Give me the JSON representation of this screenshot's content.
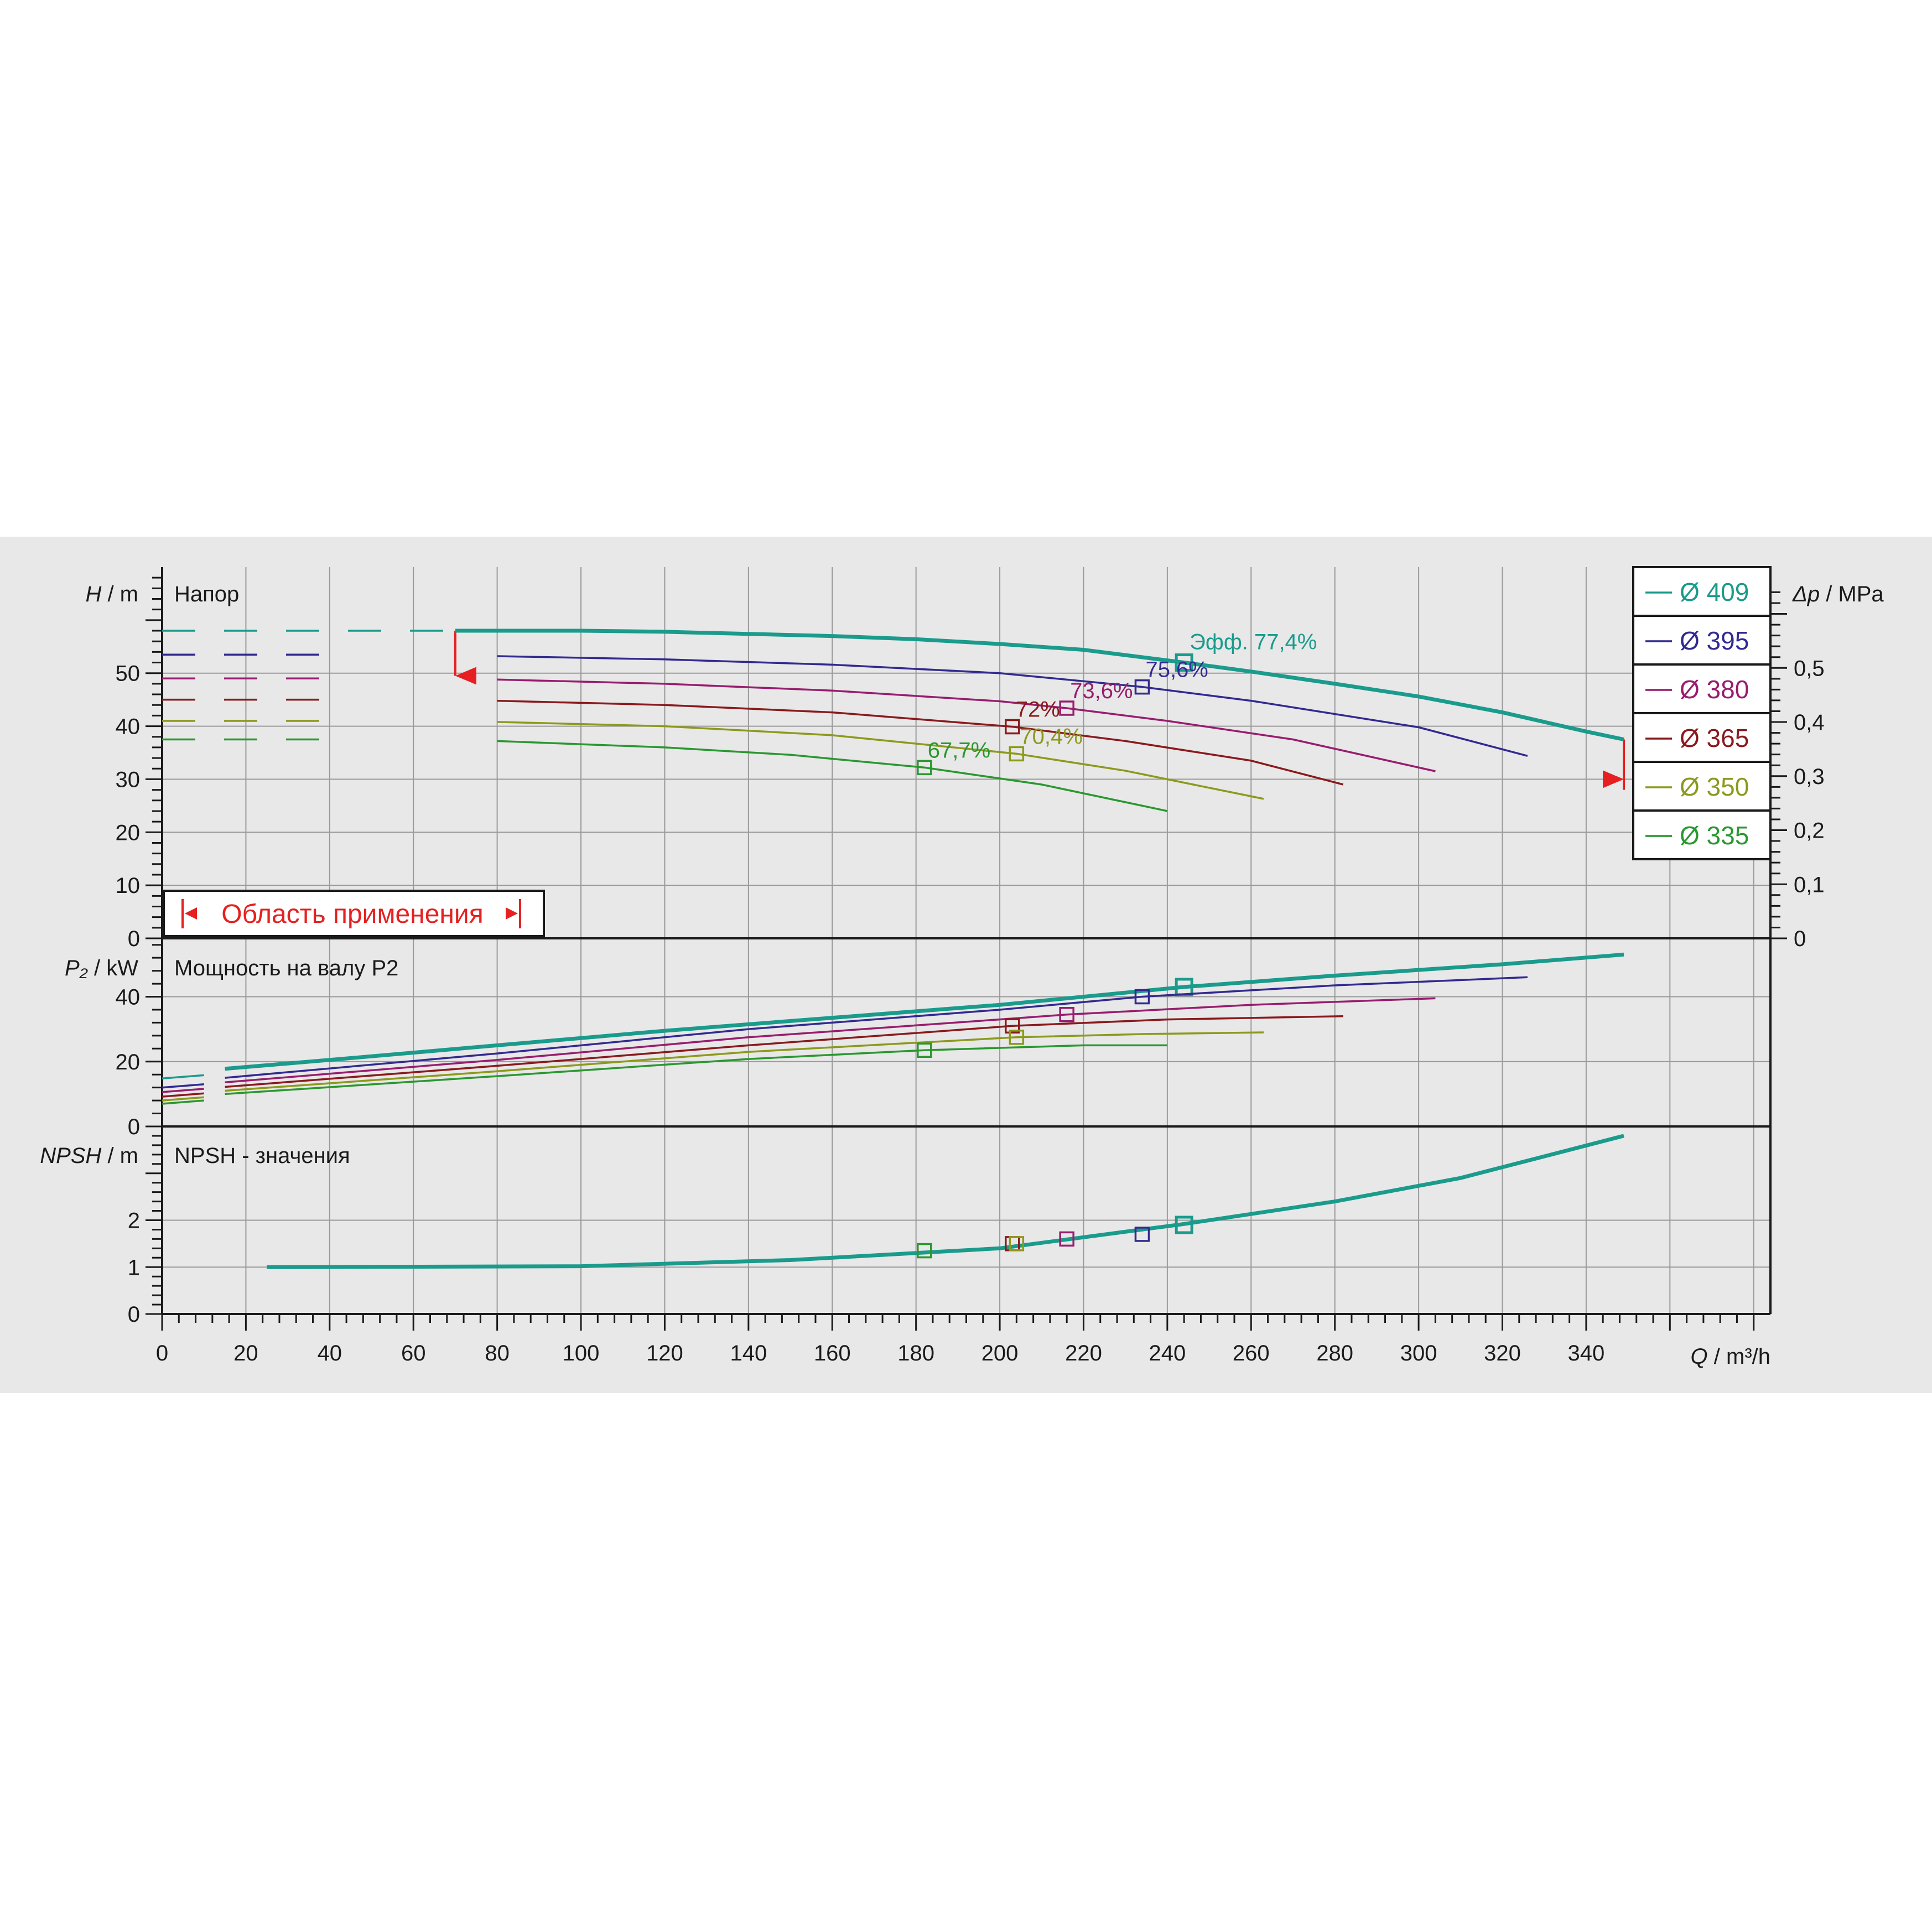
{
  "chart_data": {
    "type": "line",
    "x_axis": {
      "label_var": "Q",
      "label_unit": "/ m³/h",
      "range": [
        0,
        384
      ],
      "ticks": [
        0,
        20,
        40,
        60,
        80,
        100,
        120,
        140,
        160,
        180,
        200,
        220,
        240,
        260,
        280,
        300,
        320,
        340
      ]
    },
    "panels": {
      "head": {
        "title": "Напор",
        "y_label_var": "H",
        "y_label_unit": "/ m",
        "y_range": [
          0,
          70
        ],
        "y_ticks": [
          0,
          10,
          20,
          30,
          40,
          50
        ],
        "right_axis": {
          "label_var": "Δp",
          "label_unit": "/ MPa",
          "ticks": [
            {
              "value": 0.0,
              "label": "0"
            },
            {
              "value": 0.1,
              "label": "0,1"
            },
            {
              "value": 0.2,
              "label": "0,2"
            },
            {
              "value": 0.3,
              "label": "0,3"
            },
            {
              "value": 0.4,
              "label": "0,4"
            },
            {
              "value": 0.5,
              "label": "0,5"
            }
          ]
        },
        "application_range": {
          "label": "Область применения",
          "q_min": 70,
          "q_max": 349
        }
      },
      "power": {
        "title": "Мощность на валу P2",
        "y_label_var": "P₂",
        "y_label_unit": "/ kW",
        "y_range": [
          0,
          58
        ],
        "y_ticks": [
          0,
          20,
          40
        ]
      },
      "npsh": {
        "title": "NPSH - значения",
        "y_label_var": "NPSH",
        "y_label_unit": "/ m",
        "y_range": [
          0,
          4
        ],
        "y_ticks": [
          0,
          1,
          2
        ]
      }
    },
    "series": [
      {
        "name": "Ø 409",
        "color": "#1a9b8c",
        "bold": true,
        "head": [
          [
            0,
            58
          ],
          [
            70,
            58
          ],
          [
            100,
            58
          ],
          [
            120,
            57.8
          ],
          [
            140,
            57.4
          ],
          [
            160,
            57
          ],
          [
            180,
            56.4
          ],
          [
            200,
            55.5
          ],
          [
            220,
            54.4
          ],
          [
            244,
            52
          ],
          [
            260,
            50.3
          ],
          [
            280,
            48
          ],
          [
            300,
            45.6
          ],
          [
            320,
            42.6
          ],
          [
            340,
            39
          ],
          [
            349,
            37.5
          ]
        ],
        "power": [
          [
            15,
            17.8
          ],
          [
            40,
            20.5
          ],
          [
            80,
            25
          ],
          [
            120,
            29.5
          ],
          [
            160,
            33.5
          ],
          [
            200,
            37.5
          ],
          [
            244,
            43
          ],
          [
            280,
            46.5
          ],
          [
            320,
            50
          ],
          [
            349,
            53
          ]
        ],
        "npsh": [
          [
            25,
            1.0
          ],
          [
            100,
            1.02
          ],
          [
            150,
            1.15
          ],
          [
            200,
            1.4
          ],
          [
            244,
            1.92
          ],
          [
            280,
            2.4
          ],
          [
            310,
            2.9
          ],
          [
            349,
            3.8
          ]
        ],
        "bep": {
          "q": 244,
          "h": 52,
          "p": 43,
          "npsh": 1.9,
          "label": "Эфф.  77,4%"
        }
      },
      {
        "name": "Ø 395",
        "color": "#322a90",
        "head": [
          [
            0,
            53.5
          ],
          [
            40,
            53.5
          ],
          [
            80,
            53.2
          ],
          [
            120,
            52.6
          ],
          [
            160,
            51.6
          ],
          [
            200,
            50
          ],
          [
            234,
            47.4
          ],
          [
            260,
            44.8
          ],
          [
            300,
            39.8
          ],
          [
            326,
            34.4
          ]
        ],
        "power": [
          [
            15,
            15
          ],
          [
            80,
            22.5
          ],
          [
            140,
            30
          ],
          [
            200,
            36
          ],
          [
            234,
            40
          ],
          [
            280,
            43.5
          ],
          [
            326,
            46
          ]
        ],
        "npsh": [
          [
            234,
            1.7
          ]
        ],
        "bep": {
          "q": 234,
          "h": 47.4,
          "p": 40,
          "npsh": 1.7,
          "label": "75,6%"
        }
      },
      {
        "name": "Ø 380",
        "color": "#981d6e",
        "head": [
          [
            0,
            49
          ],
          [
            40,
            49
          ],
          [
            80,
            48.8
          ],
          [
            120,
            48
          ],
          [
            160,
            46.7
          ],
          [
            200,
            44.7
          ],
          [
            216,
            43.4
          ],
          [
            240,
            41
          ],
          [
            270,
            37.5
          ],
          [
            304,
            31.5
          ]
        ],
        "power": [
          [
            15,
            13.6
          ],
          [
            80,
            20.5
          ],
          [
            140,
            27.5
          ],
          [
            200,
            33
          ],
          [
            216,
            34.5
          ],
          [
            260,
            37.5
          ],
          [
            304,
            39.5
          ]
        ],
        "npsh": [
          [
            216,
            1.6
          ]
        ],
        "bep": {
          "q": 216,
          "h": 43.4,
          "p": 34.5,
          "npsh": 1.6,
          "label": "73,6%"
        }
      },
      {
        "name": "Ø 365",
        "color": "#8a1a1d",
        "head": [
          [
            0,
            45
          ],
          [
            40,
            45
          ],
          [
            80,
            44.8
          ],
          [
            120,
            44
          ],
          [
            160,
            42.6
          ],
          [
            203,
            39.9
          ],
          [
            230,
            37.2
          ],
          [
            260,
            33.5
          ],
          [
            282,
            29
          ]
        ],
        "power": [
          [
            15,
            12.2
          ],
          [
            80,
            18.7
          ],
          [
            140,
            25
          ],
          [
            203,
            31
          ],
          [
            240,
            33
          ],
          [
            282,
            34
          ]
        ],
        "npsh": [
          [
            203,
            1.5
          ]
        ],
        "bep": {
          "q": 203,
          "h": 39.9,
          "p": 31,
          "npsh": 1.5,
          "label": "72%"
        }
      },
      {
        "name": "Ø 350",
        "color": "#8c9a1c",
        "head": [
          [
            0,
            41
          ],
          [
            40,
            41
          ],
          [
            80,
            40.8
          ],
          [
            120,
            40
          ],
          [
            160,
            38.3
          ],
          [
            204,
            34.8
          ],
          [
            230,
            31.6
          ],
          [
            263,
            26.3
          ]
        ],
        "power": [
          [
            15,
            11
          ],
          [
            80,
            17
          ],
          [
            140,
            23
          ],
          [
            204,
            27.5
          ],
          [
            235,
            28.5
          ],
          [
            263,
            29
          ]
        ],
        "npsh": [
          [
            204,
            1.5
          ]
        ],
        "bep": {
          "q": 204,
          "h": 34.8,
          "p": 27.5,
          "npsh": 1.5,
          "label": "70,4%"
        }
      },
      {
        "name": "Ø 335",
        "color": "#2a9830",
        "head": [
          [
            0,
            37.5
          ],
          [
            40,
            37.5
          ],
          [
            80,
            37.2
          ],
          [
            120,
            36
          ],
          [
            150,
            34.6
          ],
          [
            182,
            32.2
          ],
          [
            210,
            29
          ],
          [
            240,
            24
          ]
        ],
        "power": [
          [
            15,
            10
          ],
          [
            80,
            15.5
          ],
          [
            140,
            20.8
          ],
          [
            182,
            23.5
          ],
          [
            220,
            25
          ],
          [
            240,
            25
          ]
        ],
        "npsh": [
          [
            182,
            1.35
          ]
        ],
        "bep": {
          "q": 182,
          "h": 32.2,
          "p": 23.5,
          "npsh": 1.35,
          "label": "67,7%"
        }
      }
    ]
  }
}
